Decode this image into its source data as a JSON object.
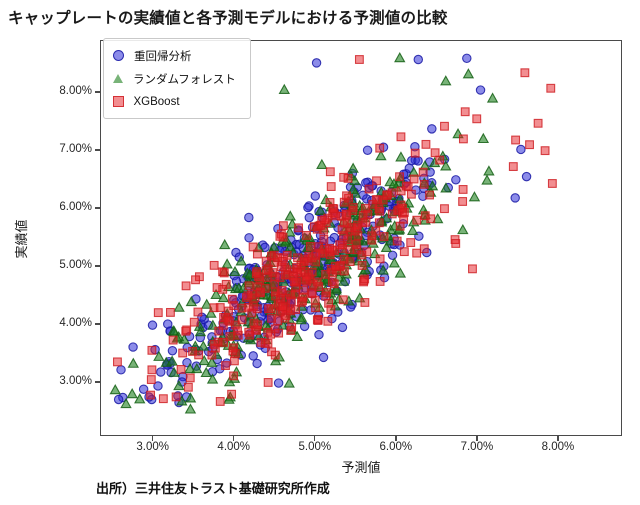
{
  "title": "キャップレートの実績値と各予測モデルにおける予測値の比較",
  "source_note": "出所）三井住友トラスト基礎研究所作成",
  "chart_data": {
    "type": "scatter",
    "title": "キャップレートの実績値と各予測モデルにおける予測値の比較",
    "xlabel": "予測値",
    "ylabel": "実績値",
    "xlim": [
      2.35,
      8.79
    ],
    "ylim": [
      2.07,
      8.9
    ],
    "x_tick_values": [
      3,
      4,
      5,
      6,
      7,
      8
    ],
    "x_tick_labels": [
      "3.00%",
      "4.00%",
      "5.00%",
      "6.00%",
      "7.00%",
      "8.00%"
    ],
    "y_tick_values": [
      3,
      4,
      5,
      6,
      7,
      8
    ],
    "y_tick_labels": [
      "3.00%",
      "4.00%",
      "5.00%",
      "6.00%",
      "7.00%",
      "8.00%"
    ],
    "grid": false,
    "legend_position": "upper left",
    "units": "percent",
    "series": [
      {
        "name": "重回帰分析",
        "marker": "circle",
        "fill": "rgba(45,45,215,0.55)",
        "edge": "rgba(25,25,165,0.85)",
        "count": 340,
        "mean": [
          4.93,
          5.02
        ],
        "sd": [
          0.93,
          0.99
        ],
        "rho": 0.84,
        "seed": 20240601,
        "points": [
          [
            2.62,
            2.72
          ],
          [
            4.55,
            2.97
          ],
          [
            5.02,
            8.52
          ],
          [
            6.28,
            8.58
          ],
          [
            7.62,
            6.55
          ],
          [
            7.55,
            7.02
          ],
          [
            3.02,
            3.55
          ],
          [
            7.05,
            8.05
          ],
          [
            7.48,
            6.18
          ]
        ]
      },
      {
        "name": "ランダムフォレスト",
        "marker": "triangle",
        "fill": "rgba(30,128,30,0.60)",
        "edge": "rgba(20,95,20,0.85)",
        "count": 340,
        "mean": [
          4.97,
          5.0
        ],
        "sd": [
          0.9,
          0.97
        ],
        "rho": 0.84,
        "seed": 777101,
        "points": [
          [
            3.95,
            2.72
          ],
          [
            4.68,
            2.96
          ],
          [
            6.05,
            8.6
          ],
          [
            6.62,
            8.2
          ],
          [
            3.38,
            3.72
          ],
          [
            7.2,
            7.9
          ],
          [
            4.62,
            8.05
          ],
          [
            6.9,
            8.32
          ]
        ]
      },
      {
        "name": "XGBoost",
        "marker": "square",
        "fill": "rgba(230,30,35,0.50)",
        "edge": "rgba(205,25,30,0.80)",
        "count": 340,
        "mean": [
          4.95,
          5.0
        ],
        "sd": [
          0.92,
          0.98
        ],
        "rho": 0.85,
        "seed": 424243,
        "points": [
          [
            3.28,
            2.73
          ],
          [
            4.42,
            2.98
          ],
          [
            5.55,
            8.58
          ],
          [
            7.92,
            8.08
          ],
          [
            7.94,
            6.43
          ],
          [
            7.6,
            8.35
          ],
          [
            2.98,
            3.2
          ],
          [
            6.95,
            4.95
          ],
          [
            7.85,
            7.0
          ]
        ]
      }
    ]
  }
}
